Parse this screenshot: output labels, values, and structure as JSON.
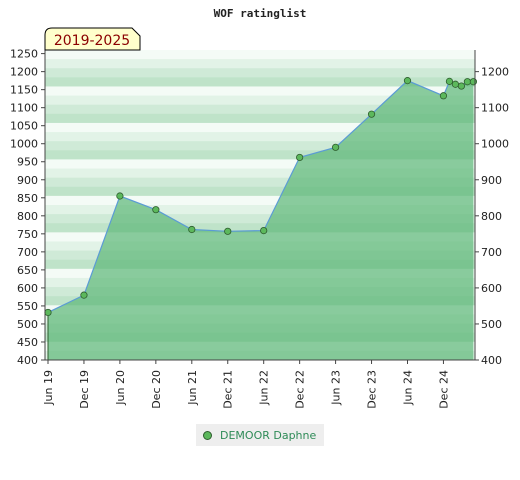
{
  "chart_data": {
    "type": "area",
    "title": "WOF ratinglist",
    "badge": "2019-2025",
    "series": [
      {
        "name": "DEMOOR Daphne",
        "points": [
          {
            "x": "2019-06",
            "y": 532
          },
          {
            "x": "2019-12",
            "y": 580
          },
          {
            "x": "2020-06",
            "y": 855
          },
          {
            "x": "2020-12",
            "y": 817
          },
          {
            "x": "2021-06",
            "y": 762
          },
          {
            "x": "2021-12",
            "y": 757
          },
          {
            "x": "2022-06",
            "y": 759
          },
          {
            "x": "2022-12",
            "y": 962
          },
          {
            "x": "2023-06",
            "y": 990
          },
          {
            "x": "2023-12",
            "y": 1082
          },
          {
            "x": "2024-06",
            "y": 1175
          },
          {
            "x": "2024-12",
            "y": 1133
          },
          {
            "x": "2025-01",
            "y": 1173
          },
          {
            "x": "2025-02",
            "y": 1165
          },
          {
            "x": "2025-03",
            "y": 1160
          },
          {
            "x": "2025-04",
            "y": 1172
          },
          {
            "x": "2025-05",
            "y": 1172
          }
        ]
      }
    ],
    "x_ticks": [
      "Jun 19",
      "Dec 19",
      "Jun 20",
      "Dec 20",
      "Jun 21",
      "Dec 21",
      "Jun 22",
      "Dec 22",
      "Jun 23",
      "Dec 23",
      "Jun 24",
      "Dec 24"
    ],
    "y_left_ticks": [
      400,
      450,
      500,
      550,
      600,
      650,
      700,
      750,
      800,
      850,
      900,
      950,
      1000,
      1050,
      1100,
      1150,
      1200,
      1250
    ],
    "y_right_ticks": [
      400,
      500,
      600,
      700,
      800,
      900,
      1000,
      1100,
      1200
    ],
    "ylim": [
      400,
      1260
    ],
    "xlim": [
      "2019-06",
      "2025-05"
    ],
    "legend_position": "bottom-center",
    "colors": {
      "area": "#5fb87a",
      "line": "#5b9bd5",
      "marker": "#5cb85c",
      "marker_edge": "#2e5d2e",
      "badge_bg": "#ffffcc",
      "badge_text": "#8b0000"
    }
  }
}
